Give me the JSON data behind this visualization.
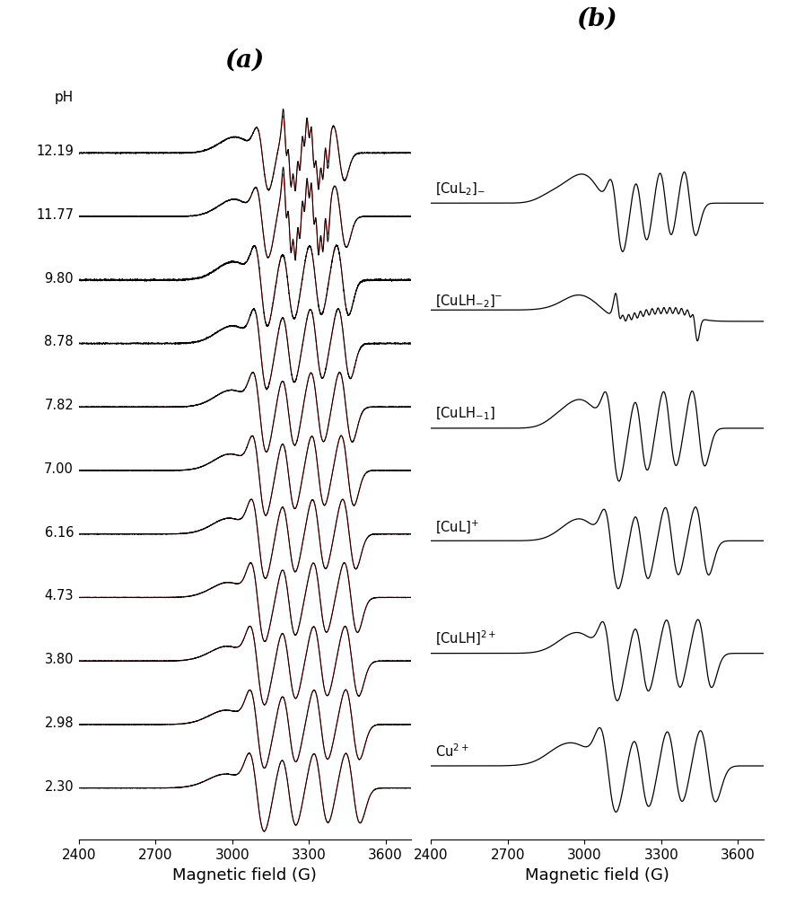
{
  "panel_a_label": "(a)",
  "panel_b_label": "(b)",
  "xlabel": "Magnetic field (G)",
  "ph_label": "pH",
  "ph_values": [
    "12.19",
    "11.77",
    "9.80",
    "8.78",
    "7.82",
    "7.00",
    "6.16",
    "4.73",
    "3.80",
    "2.98",
    "2.30"
  ],
  "x_min": 2400,
  "x_max": 3700,
  "x_ticks": [
    2400,
    2700,
    3000,
    3300,
    3600
  ],
  "background_color": "#ffffff",
  "line_color_black": "#000000",
  "line_color_red": "#ff0000"
}
